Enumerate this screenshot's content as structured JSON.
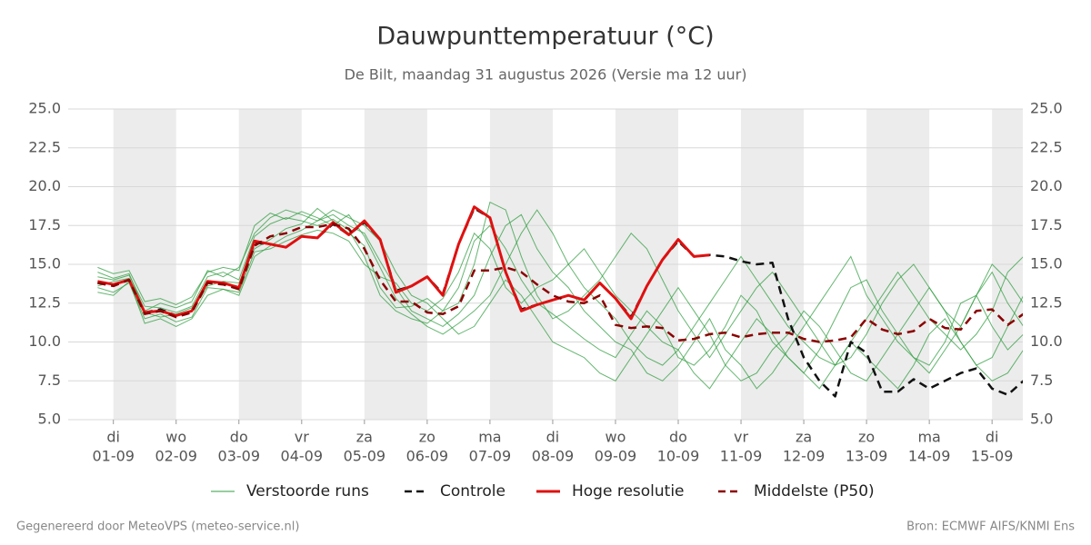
{
  "chart_data": {
    "type": "line",
    "title": "Dauwpunttemperatuur (°C)",
    "subtitle": "De Bilt, maandag 31 augustus 2026 (Versie ma 12 uur)",
    "footer_left": "Gegenereerd door MeteoVPS (meteo-service.nl)",
    "footer_right": "Bron: ECMWF AIFS/KNMI Ens",
    "xlim": [
      -0.72,
      14.49
    ],
    "xticks": [
      {
        "value": 0,
        "label": "di",
        "date": "01-09"
      },
      {
        "value": 1,
        "label": "wo",
        "date": "02-09"
      },
      {
        "value": 2,
        "label": "do",
        "date": "03-09"
      },
      {
        "value": 3,
        "label": "vr",
        "date": "04-09"
      },
      {
        "value": 4,
        "label": "za",
        "date": "05-09"
      },
      {
        "value": 5,
        "label": "zo",
        "date": "06-09"
      },
      {
        "value": 6,
        "label": "ma",
        "date": "07-09"
      },
      {
        "value": 7,
        "label": "di",
        "date": "08-09"
      },
      {
        "value": 8,
        "label": "wo",
        "date": "09-09"
      },
      {
        "value": 9,
        "label": "do",
        "date": "10-09"
      },
      {
        "value": 10,
        "label": "vr",
        "date": "11-09"
      },
      {
        "value": 11,
        "label": "za",
        "date": "12-09"
      },
      {
        "value": 12,
        "label": "zo",
        "date": "13-09"
      },
      {
        "value": 13,
        "label": "ma",
        "date": "14-09"
      },
      {
        "value": 14,
        "label": "di",
        "date": "15-09"
      }
    ],
    "ylim": [
      5,
      25
    ],
    "yticks": [
      {
        "value": 5,
        "label": "5.0"
      },
      {
        "value": 7.5,
        "label": "7.5"
      },
      {
        "value": 10,
        "label": "10.0"
      },
      {
        "value": 12.5,
        "label": "12.5"
      },
      {
        "value": 15,
        "label": "15.0"
      },
      {
        "value": 17.5,
        "label": "17.5"
      },
      {
        "value": 20,
        "label": "20.0"
      },
      {
        "value": 22.5,
        "label": "22.5"
      },
      {
        "value": 25,
        "label": "25.0"
      }
    ],
    "grid": true,
    "x": [
      -0.25,
      0,
      0.25,
      0.5,
      0.75,
      1,
      1.25,
      1.5,
      1.75,
      2,
      2.25,
      2.5,
      2.75,
      3,
      3.25,
      3.5,
      3.75,
      4,
      4.25,
      4.5,
      4.75,
      5,
      5.25,
      5.5,
      5.75,
      6,
      6.25,
      6.5,
      6.75,
      7,
      7.25,
      7.5,
      7.75,
      8,
      8.25,
      8.5,
      8.75,
      9,
      9.25,
      9.5,
      9.75,
      10,
      10.25,
      10.5,
      10.75,
      11,
      11.25,
      11.5,
      11.75,
      12,
      12.25,
      12.5,
      12.75,
      13,
      13.25,
      13.5,
      13.75,
      14,
      14.25,
      14.5
    ],
    "ensemble": {
      "name": "Verstoorde runs",
      "color": "#2f9e3f",
      "runs": [
        [
          14.2,
          14.0,
          14.3,
          12.3,
          12.2,
          11.9,
          12.3,
          14.2,
          14.5,
          14.0,
          16.8,
          17.6,
          18.0,
          17.8,
          17.5,
          17.9,
          17.2,
          15.5,
          13.0,
          12.0,
          11.5,
          11.2,
          12.0,
          13.5,
          16.5,
          17.5,
          16.0,
          14.0,
          12.5,
          11.8,
          11.0,
          10.2,
          9.5,
          9.0,
          10.5,
          12.0,
          11.0,
          9.0,
          8.5,
          9.5,
          11.0,
          13.0,
          12.0,
          10.0,
          9.0,
          8.0,
          9.5,
          11.5,
          13.5,
          14.0,
          12.0,
          10.5,
          9.0,
          8.5,
          10.0,
          12.5,
          13.0,
          11.0,
          9.5,
          10.5
        ],
        [
          13.5,
          13.2,
          13.8,
          11.5,
          11.8,
          11.3,
          11.6,
          13.5,
          13.4,
          13.0,
          15.5,
          16.2,
          16.8,
          17.2,
          17.8,
          18.2,
          17.5,
          17.0,
          15.2,
          13.5,
          12.0,
          11.5,
          11.0,
          11.8,
          13.0,
          15.5,
          17.5,
          18.2,
          16.0,
          14.5,
          13.5,
          12.0,
          11.0,
          10.0,
          9.5,
          8.0,
          7.5,
          8.5,
          10.0,
          11.5,
          9.5,
          8.5,
          7.0,
          8.0,
          9.5,
          11.0,
          12.5,
          14.0,
          15.5,
          13.0,
          11.5,
          10.0,
          9.0,
          8.0,
          9.5,
          11.0,
          13.0,
          14.5,
          12.5,
          11.0
        ],
        [
          14.5,
          14.1,
          14.4,
          12.0,
          12.5,
          12.2,
          12.6,
          14.6,
          14.2,
          14.8,
          17.0,
          18.0,
          18.5,
          18.2,
          17.8,
          18.5,
          18.0,
          17.5,
          16.5,
          14.5,
          13.0,
          12.5,
          11.5,
          10.5,
          11.0,
          12.5,
          14.0,
          13.0,
          11.5,
          10.0,
          9.5,
          9.0,
          8.0,
          7.5,
          9.0,
          10.5,
          12.0,
          13.5,
          12.0,
          10.5,
          8.5,
          7.5,
          8.0,
          9.5,
          10.5,
          12.0,
          11.0,
          9.5,
          8.0,
          7.5,
          9.0,
          10.5,
          12.0,
          13.5,
          12.0,
          10.0,
          8.5,
          9.0,
          11.0,
          13.0
        ],
        [
          13.2,
          13.0,
          13.9,
          11.2,
          11.5,
          11.0,
          11.5,
          13.0,
          13.4,
          13.2,
          15.8,
          16.0,
          16.5,
          16.9,
          17.2,
          17.0,
          16.5,
          15.0,
          14.2,
          13.8,
          12.5,
          12.0,
          12.8,
          14.5,
          17.0,
          16.0,
          13.5,
          12.5,
          13.5,
          14.0,
          15.0,
          16.0,
          14.5,
          13.0,
          12.0,
          11.0,
          10.0,
          9.5,
          11.0,
          12.5,
          14.0,
          15.5,
          14.0,
          12.5,
          11.0,
          10.0,
          9.0,
          8.5,
          10.0,
          11.5,
          13.0,
          14.5,
          13.0,
          11.5,
          10.5,
          9.5,
          10.5,
          12.0,
          14.5,
          15.5
        ],
        [
          14.8,
          14.4,
          14.6,
          12.6,
          12.8,
          12.4,
          12.9,
          14.5,
          14.8,
          14.6,
          17.5,
          18.3,
          17.9,
          18.4,
          18.0,
          17.5,
          18.2,
          16.8,
          14.8,
          12.8,
          11.8,
          11.0,
          10.5,
          11.2,
          12.0,
          13.0,
          15.0,
          17.0,
          18.5,
          17.0,
          15.0,
          13.5,
          12.5,
          11.5,
          10.0,
          9.0,
          8.5,
          9.5,
          8.0,
          7.0,
          8.5,
          10.0,
          11.5,
          10.5,
          9.0,
          8.0,
          7.0,
          8.5,
          10.0,
          9.0,
          8.0,
          7.0,
          8.5,
          10.5,
          11.5,
          10.0,
          8.5,
          7.5,
          8.0,
          9.5
        ],
        [
          13.6,
          13.9,
          14.1,
          11.9,
          11.6,
          11.8,
          12.2,
          13.6,
          13.9,
          13.8,
          16.0,
          16.6,
          17.3,
          17.6,
          18.6,
          17.8,
          17.0,
          16.2,
          13.5,
          12.2,
          12.3,
          12.8,
          12.0,
          12.5,
          15.0,
          19.0,
          18.5,
          15.5,
          13.0,
          11.5,
          12.0,
          13.0,
          14.0,
          15.5,
          17.0,
          16.0,
          14.0,
          12.0,
          10.5,
          9.0,
          10.5,
          12.0,
          13.5,
          14.5,
          13.0,
          11.5,
          10.0,
          8.5,
          9.0,
          10.5,
          12.5,
          14.0,
          15.0,
          13.5,
          12.0,
          11.0,
          13.0,
          15.0,
          14.0,
          12.5
        ]
      ]
    },
    "series": [
      {
        "name": "Controle",
        "color": "#111111",
        "dash": true,
        "values": [
          13.8,
          13.7,
          14.0,
          11.9,
          12.1,
          11.7,
          12.0,
          13.9,
          13.8,
          13.5,
          16.4,
          16.3,
          16.1,
          16.8,
          16.7,
          17.6,
          16.9,
          17.7,
          16.6,
          13.3,
          13.6,
          14.2,
          13.1,
          16.3,
          18.6,
          18.0,
          14.5,
          12.1,
          12.4,
          12.7,
          13.0,
          12.7,
          13.8,
          12.8,
          11.6,
          13.6,
          15.3,
          16.5,
          15.5,
          15.6,
          15.5,
          15.2,
          15.0,
          15.1,
          11.5,
          9.0,
          7.5,
          6.5,
          10.0,
          9.3,
          6.8,
          6.8,
          7.6,
          7.0,
          7.5,
          8.0,
          8.3,
          7.0,
          6.6,
          7.5
        ]
      },
      {
        "name": "Hoge resolutie",
        "color": "#e01010",
        "dash": false,
        "values": [
          13.9,
          13.7,
          14.0,
          11.9,
          12.0,
          11.7,
          12.0,
          13.9,
          13.8,
          13.5,
          16.5,
          16.3,
          16.1,
          16.8,
          16.7,
          17.7,
          16.9,
          17.8,
          16.6,
          13.2,
          13.6,
          14.2,
          13.0,
          16.3,
          18.7,
          18.0,
          14.5,
          12.0,
          12.4,
          12.7,
          13.0,
          12.7,
          13.8,
          12.8,
          11.5,
          13.6,
          15.3,
          16.6,
          15.5,
          15.6,
          null,
          null,
          null,
          null,
          null,
          null,
          null,
          null,
          null,
          null,
          null,
          null,
          null,
          null,
          null,
          null,
          null,
          null,
          null,
          null
        ]
      },
      {
        "name": "Middelste (P50)",
        "color": "#8b0000",
        "dash": true,
        "values": [
          13.8,
          13.6,
          14.0,
          11.8,
          12.0,
          11.6,
          11.9,
          13.8,
          13.7,
          13.4,
          16.2,
          16.8,
          17.0,
          17.4,
          17.4,
          17.6,
          17.3,
          16.0,
          14.0,
          12.6,
          12.6,
          11.9,
          11.8,
          12.3,
          14.6,
          14.6,
          14.8,
          14.5,
          13.7,
          13.0,
          12.6,
          12.5,
          13.0,
          11.1,
          10.9,
          11.0,
          10.9,
          10.1,
          10.2,
          10.5,
          10.6,
          10.3,
          10.5,
          10.6,
          10.6,
          10.2,
          10.0,
          10.1,
          10.3,
          11.5,
          10.8,
          10.5,
          10.7,
          11.5,
          10.9,
          10.8,
          12.0,
          12.1,
          11.1,
          11.8
        ]
      }
    ]
  }
}
